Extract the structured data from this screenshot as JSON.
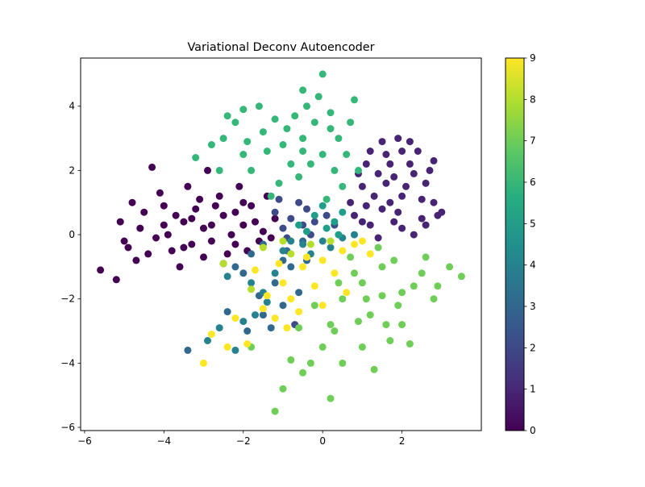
{
  "chart_data": {
    "type": "scatter",
    "title": "Variational Deconv Autoencoder",
    "xlabel": "",
    "ylabel": "",
    "xlim": [
      -6.1,
      4.0
    ],
    "ylim": [
      -6.1,
      5.5
    ],
    "x_ticks": [
      {
        "value": -6,
        "label": "−6"
      },
      {
        "value": -4,
        "label": "−4"
      },
      {
        "value": -2,
        "label": "−2"
      },
      {
        "value": 0,
        "label": "0"
      },
      {
        "value": 2,
        "label": "2"
      }
    ],
    "y_ticks": [
      {
        "value": -6,
        "label": "−6"
      },
      {
        "value": -4,
        "label": "−4"
      },
      {
        "value": -2,
        "label": "−2"
      },
      {
        "value": 0,
        "label": "0"
      },
      {
        "value": 2,
        "label": "2"
      },
      {
        "value": 4,
        "label": "4"
      }
    ],
    "grid": false,
    "legend": "none",
    "colorbar": {
      "colormap": "viridis",
      "range": [
        0,
        9
      ],
      "ticks": [
        {
          "value": 0,
          "label": "0"
        },
        {
          "value": 1,
          "label": "1"
        },
        {
          "value": 2,
          "label": "2"
        },
        {
          "value": 3,
          "label": "3"
        },
        {
          "value": 4,
          "label": "4"
        },
        {
          "value": 5,
          "label": "5"
        },
        {
          "value": 6,
          "label": "6"
        },
        {
          "value": 7,
          "label": "7"
        },
        {
          "value": 8,
          "label": "8"
        },
        {
          "value": 9,
          "label": "9"
        }
      ],
      "stops": [
        "#440154",
        "#472c7a",
        "#3b518b",
        "#2c718e",
        "#21908d",
        "#27ad81",
        "#5cc863",
        "#aadc32",
        "#fde725"
      ]
    },
    "series": [
      {
        "label": 0,
        "color": "#440154",
        "points": [
          [
            -2.0,
            0.3
          ],
          [
            -2.5,
            0.6
          ],
          [
            -1.5,
            0.1
          ],
          [
            -3.0,
            0.2
          ],
          [
            -2.2,
            -0.3
          ],
          [
            -1.8,
            0.9
          ],
          [
            -3.5,
            0.4
          ],
          [
            -2.8,
            -0.2
          ],
          [
            -1.2,
            0.5
          ],
          [
            -2.6,
            1.2
          ],
          [
            -3.2,
            0.8
          ],
          [
            -4.0,
            0.3
          ],
          [
            -3.8,
            -0.5
          ],
          [
            -4.5,
            0.7
          ],
          [
            -2.4,
            -0.6
          ],
          [
            -1.6,
            -0.2
          ],
          [
            -3.4,
            1.5
          ],
          [
            -2.1,
            1.5
          ],
          [
            -4.2,
            -0.1
          ],
          [
            -3.0,
            -0.7
          ],
          [
            -5.6,
            -1.1
          ],
          [
            -5.2,
            -1.4
          ],
          [
            -4.7,
            -0.8
          ],
          [
            -4.8,
            1.0
          ],
          [
            -3.6,
            -1.0
          ],
          [
            -4.3,
            2.1
          ],
          [
            -2.9,
            2.0
          ],
          [
            -1.4,
            1.2
          ],
          [
            -5.0,
            -0.2
          ],
          [
            -3.9,
            0.0
          ],
          [
            -2.3,
            0.0
          ],
          [
            -1.9,
            -0.5
          ],
          [
            -3.3,
            -0.3
          ],
          [
            -2.7,
            0.9
          ],
          [
            -4.4,
            -0.6
          ],
          [
            -3.1,
            1.1
          ],
          [
            -1.3,
            -0.1
          ],
          [
            -4.1,
            1.3
          ],
          [
            -2.5,
            -0.9
          ],
          [
            -3.7,
            0.6
          ],
          [
            -5.1,
            0.4
          ],
          [
            -4.6,
            0.2
          ],
          [
            -2.0,
            1.0
          ],
          [
            -1.7,
            0.4
          ],
          [
            -3.5,
            -0.4
          ],
          [
            -4.9,
            -0.4
          ],
          [
            -2.2,
            0.7
          ],
          [
            -3.3,
            0.5
          ],
          [
            -2.8,
            0.3
          ],
          [
            -4.0,
            0.9
          ]
        ]
      },
      {
        "label": 1,
        "color": "#482475",
        "points": [
          [
            1.5,
            0.8
          ],
          [
            2.0,
            1.2
          ],
          [
            1.2,
            0.3
          ],
          [
            1.8,
            1.8
          ],
          [
            2.5,
            0.5
          ],
          [
            1.0,
            1.5
          ],
          [
            2.2,
            2.2
          ],
          [
            1.6,
            2.5
          ],
          [
            2.8,
            1.0
          ],
          [
            0.8,
            0.6
          ],
          [
            1.4,
            -0.1
          ],
          [
            2.6,
            1.6
          ],
          [
            1.9,
            3.0
          ],
          [
            1.1,
            2.2
          ],
          [
            2.3,
            0.0
          ],
          [
            2.9,
            0.6
          ],
          [
            1.7,
            1.0
          ],
          [
            0.9,
            1.9
          ],
          [
            2.4,
            2.6
          ],
          [
            1.3,
            1.2
          ],
          [
            2.0,
            0.2
          ],
          [
            2.7,
            2.0
          ],
          [
            1.5,
            2.9
          ],
          [
            3.0,
            0.7
          ],
          [
            0.7,
            1.0
          ],
          [
            1.8,
            0.4
          ],
          [
            2.1,
            1.5
          ],
          [
            1.2,
            2.6
          ],
          [
            2.5,
            1.1
          ],
          [
            1.6,
            1.6
          ],
          [
            2.2,
            2.9
          ],
          [
            1.0,
            0.4
          ],
          [
            2.8,
            2.3
          ],
          [
            1.9,
            0.7
          ],
          [
            1.4,
            1.9
          ],
          [
            2.6,
            0.3
          ],
          [
            1.7,
            2.2
          ],
          [
            2.3,
            1.9
          ],
          [
            1.1,
            0.9
          ],
          [
            2.0,
            2.6
          ]
        ]
      },
      {
        "label": 2,
        "color": "#3e4a89",
        "points": [
          [
            -0.8,
            0.5
          ],
          [
            -0.4,
            0.8
          ],
          [
            -1.0,
            0.2
          ],
          [
            -0.2,
            0.4
          ],
          [
            -0.6,
            1.0
          ],
          [
            -1.2,
            0.7
          ],
          [
            -0.3,
            0.0
          ],
          [
            0.1,
            0.6
          ],
          [
            -0.9,
            -0.1
          ],
          [
            -0.5,
            0.3
          ],
          [
            -0.7,
            -2.8
          ],
          [
            0.3,
            0.3
          ],
          [
            -1.1,
            1.1
          ]
        ]
      },
      {
        "label": 3,
        "color": "#31688e",
        "points": [
          [
            -1.5,
            -0.3
          ],
          [
            -1.0,
            -0.8
          ],
          [
            -0.5,
            -0.2
          ],
          [
            -2.0,
            -1.2
          ],
          [
            -1.2,
            -1.5
          ],
          [
            -0.8,
            -1.0
          ],
          [
            -1.8,
            -0.6
          ],
          [
            -1.5,
            -2.5
          ],
          [
            -2.4,
            -2.4
          ],
          [
            -1.3,
            -2.9
          ],
          [
            -1.0,
            -2.2
          ],
          [
            -0.6,
            -1.8
          ],
          [
            -3.4,
            -3.6
          ],
          [
            -1.6,
            -1.9
          ],
          [
            -0.4,
            -0.8
          ],
          [
            -2.2,
            -1.0
          ],
          [
            -1.9,
            -3.0
          ],
          [
            -0.9,
            -0.5
          ]
        ]
      },
      {
        "label": 4,
        "color": "#26828e",
        "points": [
          [
            -0.5,
            -0.3
          ],
          [
            0.0,
            -0.2
          ],
          [
            0.5,
            -0.1
          ],
          [
            -1.0,
            -0.5
          ],
          [
            -2.0,
            -2.7
          ],
          [
            -1.7,
            -2.5
          ],
          [
            -2.2,
            -3.6
          ],
          [
            -2.9,
            -3.3
          ],
          [
            -1.5,
            -1.8
          ],
          [
            -0.3,
            -0.6
          ],
          [
            0.8,
            0.0
          ],
          [
            -1.2,
            -1.2
          ],
          [
            -1.8,
            -1.5
          ],
          [
            -2.6,
            -2.9
          ],
          [
            -0.8,
            -0.2
          ],
          [
            -1.4,
            -2.1
          ],
          [
            -2.4,
            -1.3
          ],
          [
            0.2,
            -0.4
          ]
        ]
      },
      {
        "label": 5,
        "color": "#1f9e89",
        "points": [
          [
            0.1,
            0.2
          ],
          [
            -0.2,
            0.6
          ],
          [
            0.3,
            0.4
          ],
          [
            -0.4,
            0.1
          ],
          [
            0.5,
            0.7
          ],
          [
            0.0,
            0.9
          ],
          [
            -0.6,
            0.3
          ],
          [
            0.4,
            0.0
          ]
        ]
      },
      {
        "label": 6,
        "color": "#35b779",
        "points": [
          [
            -0.5,
            3.0
          ],
          [
            0.0,
            2.5
          ],
          [
            -1.0,
            2.8
          ],
          [
            -0.2,
            3.5
          ],
          [
            0.3,
            2.0
          ],
          [
            -0.8,
            2.2
          ],
          [
            -1.5,
            3.2
          ],
          [
            -2.0,
            2.5
          ],
          [
            -0.4,
            4.0
          ],
          [
            0.2,
            3.8
          ],
          [
            -1.2,
            3.6
          ],
          [
            -2.5,
            3.0
          ],
          [
            -1.8,
            2.0
          ],
          [
            0.5,
            1.5
          ],
          [
            -0.6,
            1.8
          ],
          [
            -2.2,
            3.5
          ],
          [
            0.0,
            5.0
          ],
          [
            -0.5,
            4.5
          ],
          [
            0.8,
            4.2
          ],
          [
            -1.6,
            4.0
          ],
          [
            0.4,
            3.0
          ],
          [
            -0.9,
            3.3
          ],
          [
            -2.8,
            2.8
          ],
          [
            -3.2,
            2.4
          ],
          [
            0.6,
            2.5
          ],
          [
            -1.1,
            1.6
          ],
          [
            0.1,
            1.1
          ],
          [
            -0.3,
            2.2
          ],
          [
            -2.0,
            3.9
          ],
          [
            -1.4,
            2.6
          ],
          [
            -0.7,
            3.7
          ],
          [
            0.2,
            3.3
          ],
          [
            -2.6,
            2.0
          ],
          [
            0.9,
            2.0
          ],
          [
            -1.9,
            2.9
          ],
          [
            -0.1,
            4.3
          ],
          [
            -1.3,
            1.2
          ],
          [
            0.7,
            3.5
          ],
          [
            -2.4,
            3.7
          ],
          [
            -0.5,
            2.6
          ]
        ]
      },
      {
        "label": 7,
        "color": "#6ece58",
        "points": [
          [
            1.0,
            -1.5
          ],
          [
            1.5,
            -1.0
          ],
          [
            0.5,
            -2.0
          ],
          [
            2.0,
            -1.8
          ],
          [
            1.2,
            -2.5
          ],
          [
            0.2,
            -2.8
          ],
          [
            1.8,
            -0.8
          ],
          [
            2.5,
            -1.2
          ],
          [
            3.5,
            -1.3
          ],
          [
            0.0,
            -3.5
          ],
          [
            -0.3,
            -4.0
          ],
          [
            -1.2,
            -5.5
          ],
          [
            0.2,
            -5.1
          ],
          [
            -0.5,
            -4.3
          ],
          [
            1.3,
            -4.2
          ],
          [
            2.2,
            -3.4
          ],
          [
            2.8,
            -2.0
          ],
          [
            0.8,
            -1.2
          ],
          [
            1.6,
            -2.8
          ],
          [
            0.3,
            -3.0
          ],
          [
            -0.6,
            -2.9
          ],
          [
            1.0,
            -3.5
          ],
          [
            2.3,
            -1.6
          ],
          [
            1.9,
            -2.2
          ],
          [
            0.7,
            -0.7
          ],
          [
            1.4,
            -0.4
          ],
          [
            2.6,
            -0.7
          ],
          [
            -1.0,
            -4.8
          ],
          [
            -1.8,
            -3.5
          ],
          [
            0.5,
            -4.0
          ],
          [
            1.7,
            -3.3
          ],
          [
            2.9,
            -1.6
          ],
          [
            -0.2,
            -2.2
          ],
          [
            1.1,
            -2.0
          ],
          [
            0.4,
            -1.5
          ],
          [
            2.0,
            -2.8
          ],
          [
            1.5,
            -1.9
          ],
          [
            0.9,
            -2.7
          ],
          [
            -0.8,
            -3.9
          ],
          [
            3.2,
            -1.0
          ]
        ]
      },
      {
        "label": 8,
        "color": "#b5de2b",
        "points": [
          [
            -1.5,
            -0.4
          ],
          [
            -1.0,
            -0.2
          ],
          [
            -0.3,
            -0.3
          ],
          [
            -2.5,
            -0.9
          ],
          [
            -1.8,
            -1.7
          ],
          [
            0.2,
            -0.2
          ],
          [
            -0.8,
            -0.6
          ]
        ]
      },
      {
        "label": 9,
        "color": "#fde725",
        "points": [
          [
            -0.5,
            -1.0
          ],
          [
            0.0,
            -0.8
          ],
          [
            -1.0,
            -1.5
          ],
          [
            0.5,
            -0.5
          ],
          [
            -0.8,
            -2.0
          ],
          [
            -1.5,
            -2.3
          ],
          [
            -0.2,
            -1.6
          ],
          [
            0.8,
            -0.3
          ],
          [
            -2.8,
            -3.1
          ],
          [
            -2.4,
            -3.5
          ],
          [
            -3.0,
            -4.0
          ],
          [
            -1.9,
            -3.4
          ],
          [
            -1.2,
            -2.6
          ],
          [
            0.3,
            -1.2
          ],
          [
            -0.6,
            -2.4
          ],
          [
            1.2,
            -0.6
          ],
          [
            -1.7,
            -1.1
          ],
          [
            -0.4,
            -0.7
          ],
          [
            -2.2,
            -2.6
          ],
          [
            0.6,
            -1.8
          ],
          [
            -1.1,
            -0.9
          ],
          [
            -0.9,
            -2.9
          ],
          [
            -1.4,
            -1.9
          ],
          [
            1.0,
            -0.2
          ],
          [
            0.0,
            -2.2
          ]
        ]
      }
    ]
  }
}
